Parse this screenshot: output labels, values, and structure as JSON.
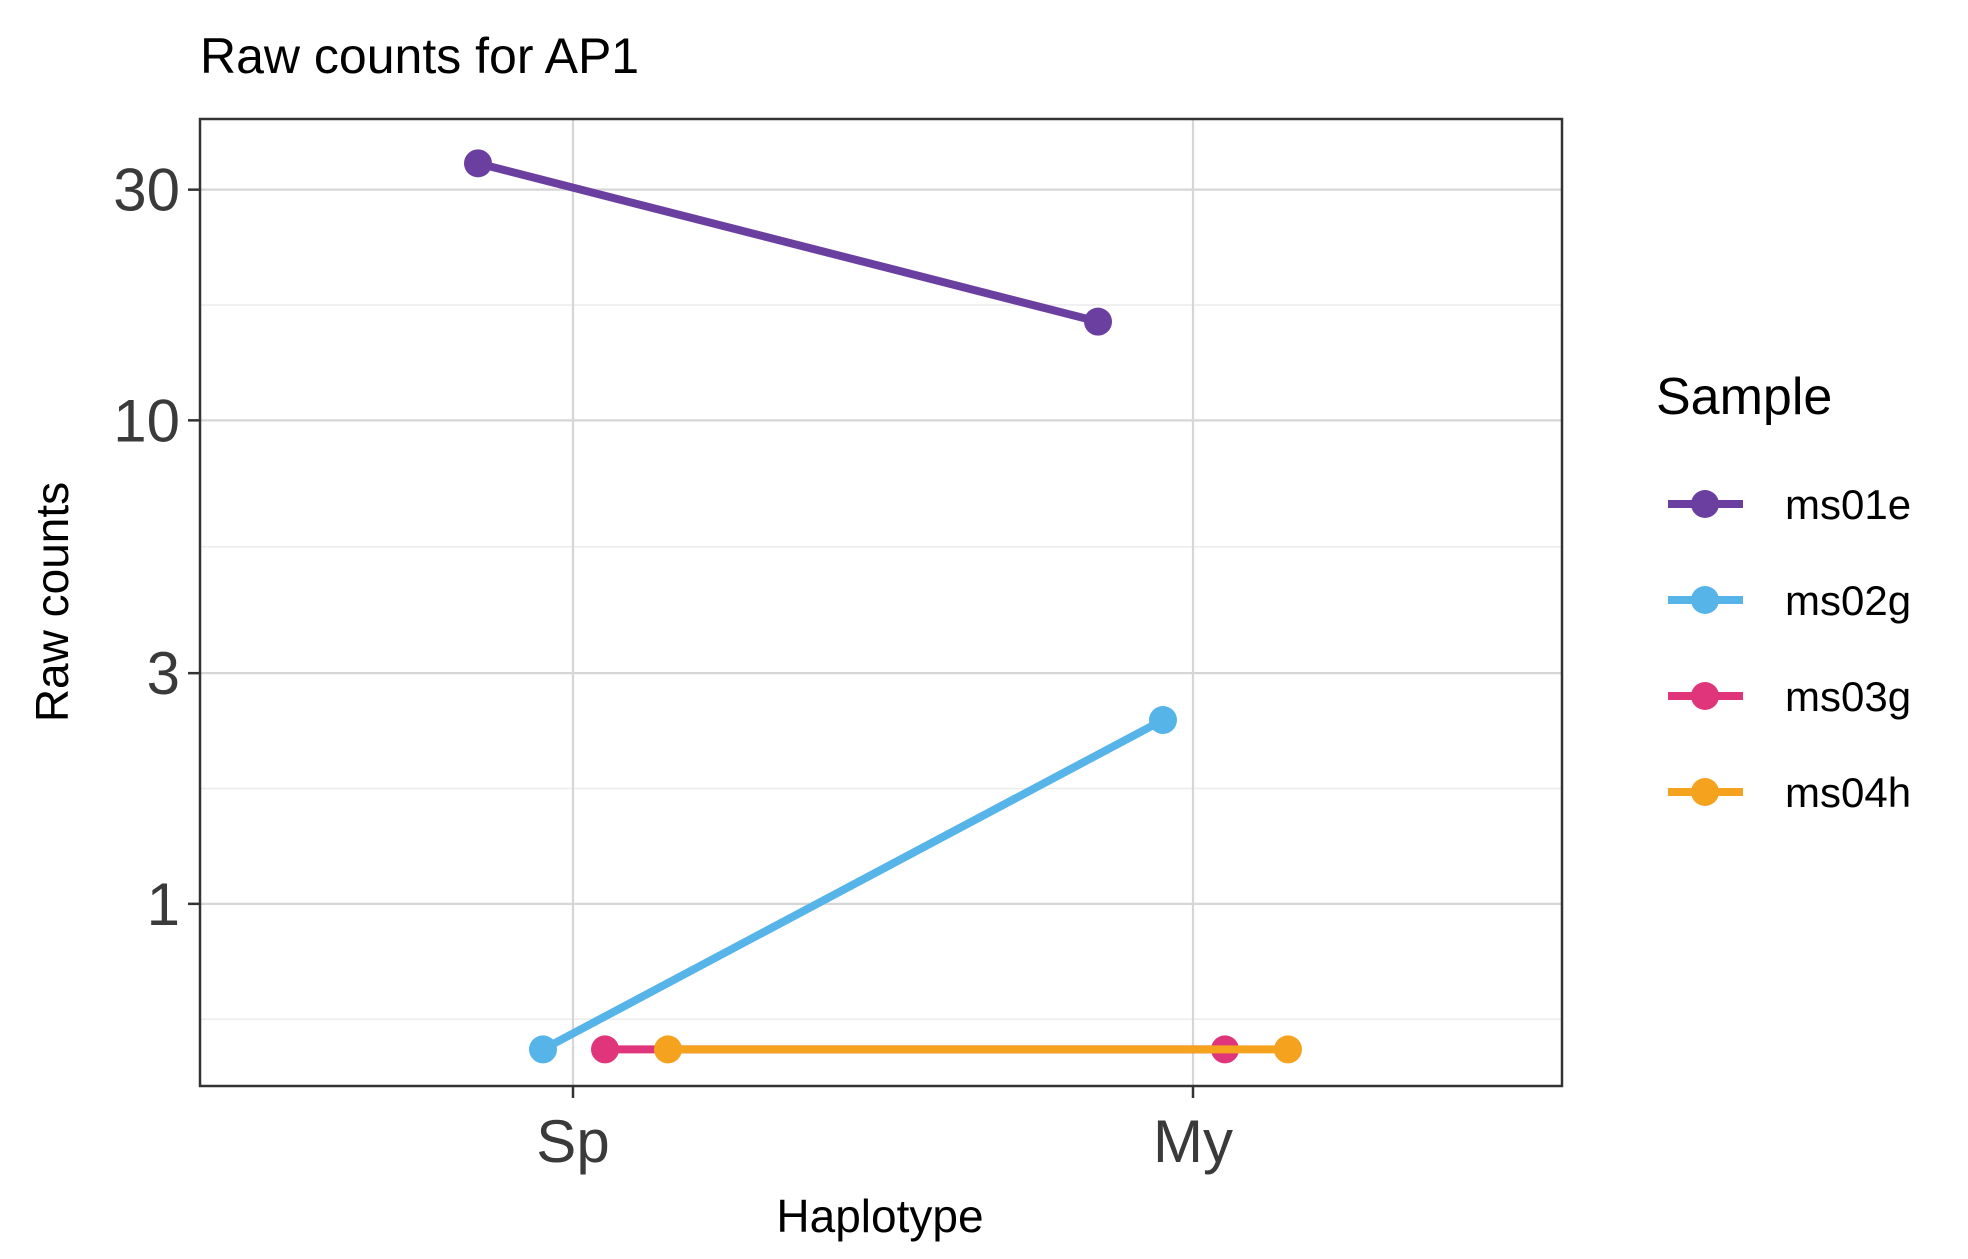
{
  "chart_data": {
    "type": "line",
    "title": "Raw counts for AP1",
    "xlabel": "Haplotype",
    "ylabel": "Raw counts",
    "categories": [
      "Sp",
      "My"
    ],
    "y_scale": "log10",
    "ylim": [
      0.42,
      42
    ],
    "y_ticks": [
      1,
      3,
      10,
      30
    ],
    "y_tick_labels": [
      "1",
      "3",
      "10",
      "30"
    ],
    "grid": true,
    "legend": {
      "title": "Sample",
      "placement": "right"
    },
    "series": [
      {
        "name": "ms01e",
        "color": "#6b3fa0",
        "values": [
          34,
          16
        ]
      },
      {
        "name": "ms02g",
        "color": "#56b4e9",
        "values": [
          0.5,
          2.4
        ]
      },
      {
        "name": "ms03g",
        "color": "#e0357a",
        "values": [
          0.5,
          0.5
        ]
      },
      {
        "name": "ms04h",
        "color": "#f5a21f",
        "values": [
          0.5,
          0.5
        ]
      }
    ]
  }
}
